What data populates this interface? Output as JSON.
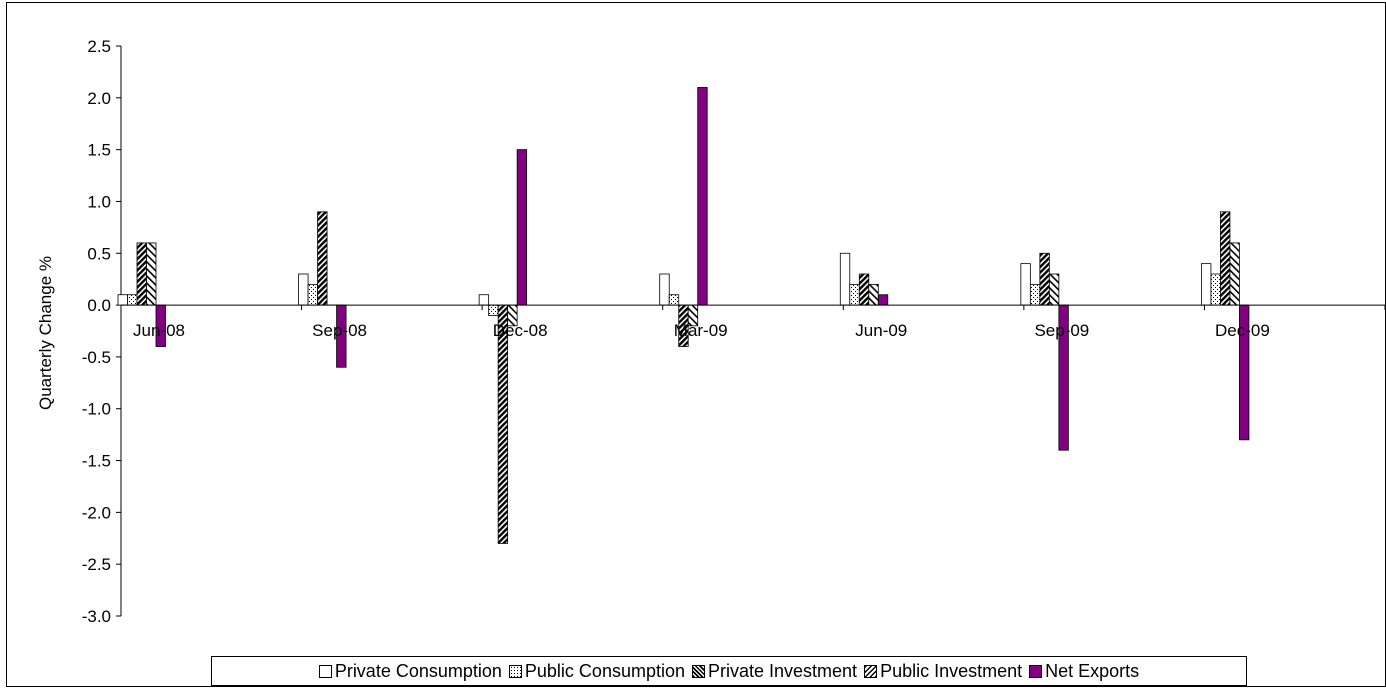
{
  "chart_data": {
    "type": "bar",
    "title": "",
    "xlabel": "",
    "ylabel": "Quarterly Change %",
    "ylim": [
      -3.0,
      2.5
    ],
    "yticks": [
      "2.5",
      "2.0",
      "1.5",
      "1.0",
      "0.5",
      "0.0",
      "-0.5",
      "-1.0",
      "-1.5",
      "-2.0",
      "-2.5",
      "-3.0"
    ],
    "categories": [
      "Jun-08",
      "Sep-08",
      "Dec-08",
      "Mar-09",
      "Jun-09",
      "Sep-09",
      "Dec-09"
    ],
    "series": [
      {
        "name": "Private Consumption",
        "values": [
          0.1,
          0.3,
          0.1,
          0.3,
          0.5,
          0.4,
          0.4
        ],
        "pattern": "open"
      },
      {
        "name": "Public Consumption",
        "values": [
          0.1,
          0.2,
          -0.1,
          0.1,
          0.2,
          0.2,
          0.3
        ],
        "pattern": "dotted"
      },
      {
        "name": "Private Investment",
        "values": [
          0.6,
          0.9,
          -2.3,
          -0.4,
          0.3,
          0.5,
          0.9
        ],
        "pattern": "dense-hatch"
      },
      {
        "name": "Public Investment",
        "values": [
          0.6,
          0.0,
          -0.2,
          -0.2,
          0.2,
          0.3,
          0.6
        ],
        "pattern": "wide-hatch"
      },
      {
        "name": "Net Exports",
        "values": [
          -0.4,
          -0.6,
          1.5,
          2.1,
          0.1,
          -1.4,
          -1.3
        ],
        "pattern": "solid",
        "color": "#800080"
      }
    ],
    "grid": false,
    "legend_position": "bottom"
  }
}
